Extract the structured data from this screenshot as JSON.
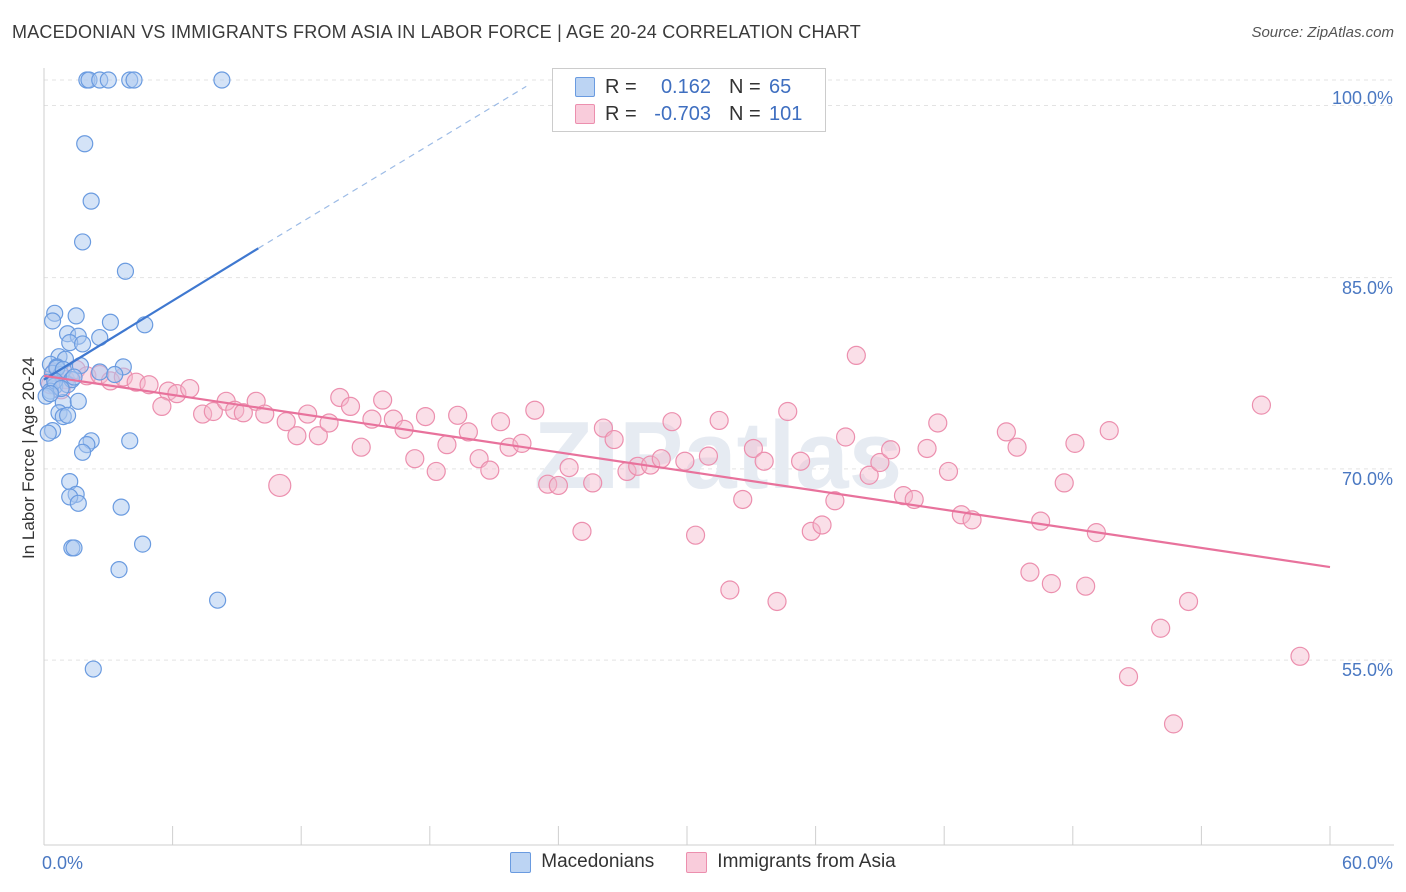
{
  "header": {
    "title": "MACEDONIAN VS IMMIGRANTS FROM ASIA IN LABOR FORCE | AGE 20-24 CORRELATION CHART",
    "source": "Source: ZipAtlas.com"
  },
  "watermark": "ZIPatlas",
  "legend": {
    "rows": [
      {
        "r_label": "R =",
        "r_value": "0.162",
        "n_label": "N =",
        "n_value": "65"
      },
      {
        "r_label": "R =",
        "r_value": "-0.703",
        "n_label": "N =",
        "n_value": "101"
      }
    ]
  },
  "bottom_legend": {
    "items": [
      {
        "label": "Macedonians"
      },
      {
        "label": "Immigrants from Asia"
      }
    ]
  },
  "colors": {
    "blue_fill": "#a9c8f0",
    "blue_stroke": "#6a9be0",
    "blue_line": "#3f78d0",
    "pink_fill": "#f5b8cc",
    "pink_stroke": "#ec8fae",
    "pink_line": "#e8729c",
    "grid": "#e3e3e3",
    "tick_text": "#4a78c2"
  },
  "chart_data": {
    "type": "scatter",
    "title": "MACEDONIAN VS IMMIGRANTS FROM ASIA IN LABOR FORCE | AGE 20-24 CORRELATION CHART",
    "ylabel": "In Labor Force | Age 20-24",
    "xlabel": "",
    "xlim": [
      0,
      60
    ],
    "ylim": [
      40,
      100
    ],
    "x_tick_labels": [
      "0.0%",
      "60.0%"
    ],
    "y_ticks": [
      55,
      70,
      85,
      100
    ],
    "y_tick_labels": [
      "55.0%",
      "70.0%",
      "85.0%",
      "100.0%"
    ],
    "grid": true,
    "legend_position": "top-center",
    "series": [
      {
        "name": "Macedonians",
        "color": "#6a9be0",
        "trend": {
          "x": [
            0,
            10
          ],
          "y": [
            77.0,
            87.3
          ],
          "dashed_extension": {
            "x": [
              10,
              22.5
            ],
            "y": [
              87.3,
              100
            ]
          }
        },
        "points": [
          {
            "x": 2.0,
            "y": 100.5
          },
          {
            "x": 2.1,
            "y": 100.5
          },
          {
            "x": 2.6,
            "y": 100.5
          },
          {
            "x": 3.0,
            "y": 100.5
          },
          {
            "x": 4.0,
            "y": 100.5
          },
          {
            "x": 4.2,
            "y": 100.5
          },
          {
            "x": 8.3,
            "y": 100.5
          },
          {
            "x": 1.9,
            "y": 95.5
          },
          {
            "x": 2.2,
            "y": 91.0
          },
          {
            "x": 1.8,
            "y": 87.8
          },
          {
            "x": 3.8,
            "y": 85.5
          },
          {
            "x": 0.5,
            "y": 82.2
          },
          {
            "x": 1.5,
            "y": 82.0
          },
          {
            "x": 0.4,
            "y": 81.6
          },
          {
            "x": 3.1,
            "y": 81.5
          },
          {
            "x": 4.7,
            "y": 81.3
          },
          {
            "x": 1.1,
            "y": 80.6
          },
          {
            "x": 1.6,
            "y": 80.4
          },
          {
            "x": 2.6,
            "y": 80.3
          },
          {
            "x": 1.2,
            "y": 79.9
          },
          {
            "x": 1.8,
            "y": 79.8
          },
          {
            "x": 0.7,
            "y": 78.8
          },
          {
            "x": 1.0,
            "y": 78.6
          },
          {
            "x": 0.3,
            "y": 78.2
          },
          {
            "x": 0.6,
            "y": 78.0
          },
          {
            "x": 1.7,
            "y": 78.1
          },
          {
            "x": 3.7,
            "y": 78.0
          },
          {
            "x": 0.4,
            "y": 77.5
          },
          {
            "x": 0.8,
            "y": 77.4
          },
          {
            "x": 2.6,
            "y": 77.6
          },
          {
            "x": 3.3,
            "y": 77.4
          },
          {
            "x": 0.2,
            "y": 76.8
          },
          {
            "x": 0.5,
            "y": 76.5
          },
          {
            "x": 1.1,
            "y": 76.6
          },
          {
            "x": 0.3,
            "y": 76.1
          },
          {
            "x": 0.1,
            "y": 75.7
          },
          {
            "x": 0.9,
            "y": 75.2
          },
          {
            "x": 1.6,
            "y": 75.3
          },
          {
            "x": 0.7,
            "y": 74.4
          },
          {
            "x": 0.9,
            "y": 74.1
          },
          {
            "x": 1.1,
            "y": 74.2
          },
          {
            "x": 0.4,
            "y": 73.0
          },
          {
            "x": 0.2,
            "y": 72.8
          },
          {
            "x": 2.2,
            "y": 72.2
          },
          {
            "x": 2.0,
            "y": 71.9
          },
          {
            "x": 4.0,
            "y": 72.2
          },
          {
            "x": 1.8,
            "y": 71.3
          },
          {
            "x": 1.2,
            "y": 69.0
          },
          {
            "x": 1.5,
            "y": 68.0
          },
          {
            "x": 1.2,
            "y": 67.8
          },
          {
            "x": 1.6,
            "y": 67.3
          },
          {
            "x": 3.6,
            "y": 67.0
          },
          {
            "x": 1.3,
            "y": 63.8
          },
          {
            "x": 1.4,
            "y": 63.8
          },
          {
            "x": 4.6,
            "y": 64.1
          },
          {
            "x": 3.5,
            "y": 62.1
          },
          {
            "x": 8.1,
            "y": 59.7
          },
          {
            "x": 2.3,
            "y": 54.3
          },
          {
            "x": 0.6,
            "y": 77.9
          },
          {
            "x": 0.9,
            "y": 77.8
          },
          {
            "x": 1.3,
            "y": 77.0
          },
          {
            "x": 0.5,
            "y": 76.9
          },
          {
            "x": 0.8,
            "y": 76.3
          },
          {
            "x": 0.3,
            "y": 75.9
          },
          {
            "x": 1.4,
            "y": 77.2
          }
        ]
      },
      {
        "name": "Immigrants from Asia",
        "color": "#ec8fae",
        "trend": {
          "x": [
            0,
            60
          ],
          "y": [
            77.3,
            62.3
          ]
        },
        "points": [
          {
            "x": 0.5,
            "y": 77.6
          },
          {
            "x": 1.0,
            "y": 77.0
          },
          {
            "x": 1.5,
            "y": 77.8
          },
          {
            "x": 2.0,
            "y": 77.3
          },
          {
            "x": 2.6,
            "y": 77.4
          },
          {
            "x": 3.1,
            "y": 76.9
          },
          {
            "x": 3.7,
            "y": 77.2
          },
          {
            "x": 4.3,
            "y": 76.8
          },
          {
            "x": 4.9,
            "y": 76.6
          },
          {
            "x": 5.8,
            "y": 76.1
          },
          {
            "x": 6.2,
            "y": 75.9
          },
          {
            "x": 5.5,
            "y": 74.9
          },
          {
            "x": 6.8,
            "y": 76.3
          },
          {
            "x": 7.4,
            "y": 74.3
          },
          {
            "x": 7.9,
            "y": 74.5
          },
          {
            "x": 8.5,
            "y": 75.3
          },
          {
            "x": 8.9,
            "y": 74.6
          },
          {
            "x": 9.3,
            "y": 74.4
          },
          {
            "x": 9.9,
            "y": 75.3
          },
          {
            "x": 10.3,
            "y": 74.3
          },
          {
            "x": 11.3,
            "y": 73.7
          },
          {
            "x": 11.8,
            "y": 72.6
          },
          {
            "x": 12.3,
            "y": 74.3
          },
          {
            "x": 12.8,
            "y": 72.6
          },
          {
            "x": 13.3,
            "y": 73.6
          },
          {
            "x": 13.8,
            "y": 75.6
          },
          {
            "x": 14.3,
            "y": 74.9
          },
          {
            "x": 14.8,
            "y": 71.7
          },
          {
            "x": 15.3,
            "y": 73.9
          },
          {
            "x": 15.8,
            "y": 75.4
          },
          {
            "x": 16.3,
            "y": 73.9
          },
          {
            "x": 16.8,
            "y": 73.1
          },
          {
            "x": 17.3,
            "y": 70.8
          },
          {
            "x": 17.8,
            "y": 74.1
          },
          {
            "x": 18.3,
            "y": 69.8
          },
          {
            "x": 18.8,
            "y": 71.9
          },
          {
            "x": 19.3,
            "y": 74.2
          },
          {
            "x": 19.8,
            "y": 72.9
          },
          {
            "x": 20.3,
            "y": 70.8
          },
          {
            "x": 20.8,
            "y": 69.9
          },
          {
            "x": 21.3,
            "y": 73.7
          },
          {
            "x": 21.7,
            "y": 71.7
          },
          {
            "x": 22.3,
            "y": 72.0
          },
          {
            "x": 22.9,
            "y": 74.6
          },
          {
            "x": 23.5,
            "y": 68.8
          },
          {
            "x": 24.0,
            "y": 68.7
          },
          {
            "x": 24.5,
            "y": 70.1
          },
          {
            "x": 25.1,
            "y": 65.1
          },
          {
            "x": 25.6,
            "y": 68.9
          },
          {
            "x": 26.1,
            "y": 73.2
          },
          {
            "x": 26.6,
            "y": 72.3
          },
          {
            "x": 27.2,
            "y": 69.8
          },
          {
            "x": 27.7,
            "y": 70.2
          },
          {
            "x": 28.3,
            "y": 70.3
          },
          {
            "x": 28.8,
            "y": 70.8
          },
          {
            "x": 29.3,
            "y": 73.7
          },
          {
            "x": 29.9,
            "y": 70.6
          },
          {
            "x": 30.4,
            "y": 64.8
          },
          {
            "x": 31.0,
            "y": 71.0
          },
          {
            "x": 31.5,
            "y": 73.8
          },
          {
            "x": 32.0,
            "y": 60.5
          },
          {
            "x": 32.6,
            "y": 67.6
          },
          {
            "x": 33.1,
            "y": 71.6
          },
          {
            "x": 33.6,
            "y": 70.6
          },
          {
            "x": 34.2,
            "y": 59.6
          },
          {
            "x": 34.7,
            "y": 74.5
          },
          {
            "x": 35.3,
            "y": 70.6
          },
          {
            "x": 35.8,
            "y": 65.1
          },
          {
            "x": 36.3,
            "y": 65.6
          },
          {
            "x": 36.9,
            "y": 67.5
          },
          {
            "x": 37.4,
            "y": 72.5
          },
          {
            "x": 37.9,
            "y": 78.9
          },
          {
            "x": 38.5,
            "y": 69.5
          },
          {
            "x": 39.0,
            "y": 70.5
          },
          {
            "x": 39.5,
            "y": 71.5
          },
          {
            "x": 40.1,
            "y": 67.9
          },
          {
            "x": 40.6,
            "y": 67.6
          },
          {
            "x": 41.2,
            "y": 71.6
          },
          {
            "x": 41.7,
            "y": 73.6
          },
          {
            "x": 42.2,
            "y": 69.8
          },
          {
            "x": 42.8,
            "y": 66.4
          },
          {
            "x": 43.3,
            "y": 66.0
          },
          {
            "x": 44.9,
            "y": 72.9
          },
          {
            "x": 45.4,
            "y": 71.7
          },
          {
            "x": 46.0,
            "y": 61.9
          },
          {
            "x": 46.5,
            "y": 65.9
          },
          {
            "x": 47.0,
            "y": 61.0
          },
          {
            "x": 47.6,
            "y": 68.9
          },
          {
            "x": 48.1,
            "y": 72.0
          },
          {
            "x": 48.6,
            "y": 60.8
          },
          {
            "x": 49.1,
            "y": 65.0
          },
          {
            "x": 49.7,
            "y": 73.0
          },
          {
            "x": 50.6,
            "y": 53.7
          },
          {
            "x": 52.1,
            "y": 57.5
          },
          {
            "x": 52.7,
            "y": 50.0
          },
          {
            "x": 53.4,
            "y": 59.6
          },
          {
            "x": 56.8,
            "y": 75.0
          },
          {
            "x": 58.6,
            "y": 55.3
          },
          {
            "x": 11.0,
            "y": 68.7
          },
          {
            "x": 0.8,
            "y": 76.2
          },
          {
            "x": 0.3,
            "y": 76.6
          }
        ]
      }
    ]
  }
}
